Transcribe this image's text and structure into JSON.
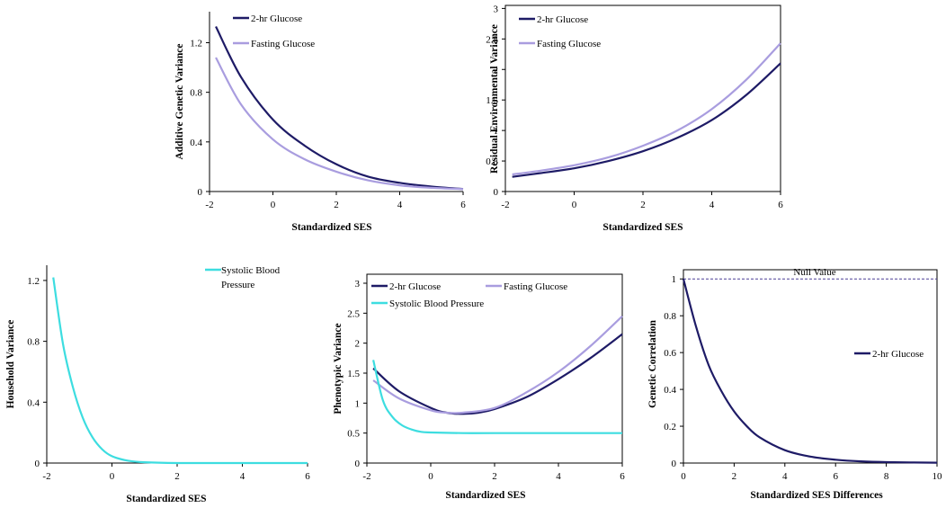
{
  "colors": {
    "two_hr_glucose": "#1e1b66",
    "fasting_glucose": "#a99ddf",
    "systolic_bp": "#3ddde0",
    "null_line": "#4a3f96"
  },
  "chart_data": [
    {
      "id": "additive-genetic",
      "type": "line",
      "xlabel": "Standardized SES",
      "ylabel": "Additive Genetic Variance",
      "xlim": [
        -2,
        6
      ],
      "ylim": [
        0,
        1.45
      ],
      "xticks": [
        "-2",
        "0",
        "2",
        "4",
        "6"
      ],
      "yticks": [
        "0",
        "0.4",
        "0.8",
        "1.2"
      ],
      "legend_position": "top-right",
      "series": [
        {
          "name": "2-hr Glucose",
          "color_key": "two_hr_glucose",
          "x": [
            -1.8,
            -1,
            0,
            1,
            2,
            3,
            4,
            5,
            6
          ],
          "y": [
            1.33,
            0.92,
            0.58,
            0.37,
            0.22,
            0.12,
            0.07,
            0.04,
            0.02
          ]
        },
        {
          "name": "Fasting Glucose",
          "color_key": "fasting_glucose",
          "x": [
            -1.8,
            -1,
            0,
            1,
            2,
            3,
            4,
            5,
            6
          ],
          "y": [
            1.08,
            0.7,
            0.42,
            0.26,
            0.16,
            0.09,
            0.05,
            0.03,
            0.02
          ]
        }
      ]
    },
    {
      "id": "residual-environmental",
      "type": "line",
      "xlabel": "Standardized SES",
      "ylabel": "Residual Environmental Variance",
      "xlim": [
        -2,
        6
      ],
      "ylim": [
        0,
        3.05
      ],
      "xticks": [
        "-2",
        "0",
        "2",
        "4",
        "6"
      ],
      "yticks": [
        "0",
        "0.5",
        "1",
        "1.5",
        "2",
        "2.5",
        "3"
      ],
      "legend_position": "top-left",
      "series": [
        {
          "name": "2-hr Glucose",
          "color_key": "two_hr_glucose",
          "x": [
            -1.8,
            -1,
            0,
            1,
            2,
            3,
            4,
            5,
            6
          ],
          "y": [
            0.24,
            0.3,
            0.38,
            0.5,
            0.66,
            0.88,
            1.17,
            1.58,
            2.1
          ]
        },
        {
          "name": "Fasting Glucose",
          "color_key": "fasting_glucose",
          "x": [
            -1.8,
            -1,
            0,
            1,
            2,
            3,
            4,
            5,
            6
          ],
          "y": [
            0.28,
            0.34,
            0.43,
            0.56,
            0.75,
            1.0,
            1.35,
            1.83,
            2.43
          ]
        }
      ]
    },
    {
      "id": "household",
      "type": "line",
      "xlabel": "Standardized SES",
      "ylabel": "Household Variance",
      "xlim": [
        -2,
        6
      ],
      "ylim": [
        0,
        1.3
      ],
      "xticks": [
        "-2",
        "0",
        "2",
        "4",
        "6"
      ],
      "yticks": [
        "0",
        "0.4",
        "0.8",
        "1.2"
      ],
      "legend_position": "top-right",
      "series": [
        {
          "name": "Systolic Blood Pressure",
          "legend_lines": [
            "Systolic Blood",
            "Pressure"
          ],
          "color_key": "systolic_bp",
          "x": [
            -1.8,
            -1.5,
            -1.2,
            -0.9,
            -0.6,
            -0.3,
            0,
            0.5,
            1,
            2,
            4,
            6
          ],
          "y": [
            1.22,
            0.78,
            0.5,
            0.3,
            0.17,
            0.09,
            0.045,
            0.015,
            0.005,
            0.0,
            0.0,
            0.0
          ]
        }
      ]
    },
    {
      "id": "phenotypic",
      "type": "line",
      "xlabel": "Standardized SES",
      "ylabel": "Phenotypic Variance",
      "xlim": [
        -2,
        6
      ],
      "ylim": [
        0,
        3.15
      ],
      "xticks": [
        "-2",
        "0",
        "2",
        "4",
        "6"
      ],
      "yticks": [
        "0",
        "0.5",
        "1",
        "1.5",
        "2",
        "2.5",
        "3"
      ],
      "legend_position": "top",
      "series": [
        {
          "name": "2-hr Glucose",
          "color_key": "two_hr_glucose",
          "x": [
            -1.8,
            -1,
            0,
            0.5,
            1,
            1.5,
            2,
            3,
            4,
            5,
            6
          ],
          "y": [
            1.58,
            1.2,
            0.92,
            0.84,
            0.82,
            0.84,
            0.9,
            1.1,
            1.4,
            1.75,
            2.15
          ]
        },
        {
          "name": "Fasting Glucose",
          "color_key": "fasting_glucose",
          "x": [
            -1.8,
            -1,
            0,
            0.5,
            1,
            2,
            3,
            4,
            5,
            6
          ],
          "y": [
            1.38,
            1.08,
            0.88,
            0.84,
            0.84,
            0.92,
            1.18,
            1.52,
            1.95,
            2.45
          ]
        },
        {
          "name": "Systolic Blood Pressure",
          "color_key": "systolic_bp",
          "x": [
            -1.8,
            -1.5,
            -1.2,
            -0.9,
            -0.6,
            -0.3,
            0,
            1,
            2,
            4,
            6
          ],
          "y": [
            1.72,
            1.05,
            0.77,
            0.63,
            0.56,
            0.52,
            0.51,
            0.5,
            0.5,
            0.5,
            0.5
          ]
        }
      ]
    },
    {
      "id": "genetic-correlation",
      "type": "line",
      "xlabel": "Standardized SES Differences",
      "ylabel": "Genetic Correlation",
      "xlim": [
        0,
        10
      ],
      "ylim": [
        0,
        1.05
      ],
      "xticks": [
        "0",
        "2",
        "4",
        "6",
        "8",
        "10"
      ],
      "yticks": [
        "0",
        "0.2",
        "0.4",
        "0.6",
        "0.8",
        "1"
      ],
      "legend_position": "middle-right",
      "annotation": "Null Value",
      "null_value": 1,
      "series": [
        {
          "name": "2-hr Glucose",
          "color_key": "two_hr_glucose",
          "x": [
            0,
            0.5,
            1,
            1.5,
            2,
            2.5,
            3,
            4,
            5,
            6,
            7,
            8,
            10
          ],
          "y": [
            1.0,
            0.74,
            0.53,
            0.39,
            0.28,
            0.2,
            0.14,
            0.07,
            0.035,
            0.018,
            0.009,
            0.005,
            0.002
          ]
        }
      ]
    }
  ]
}
